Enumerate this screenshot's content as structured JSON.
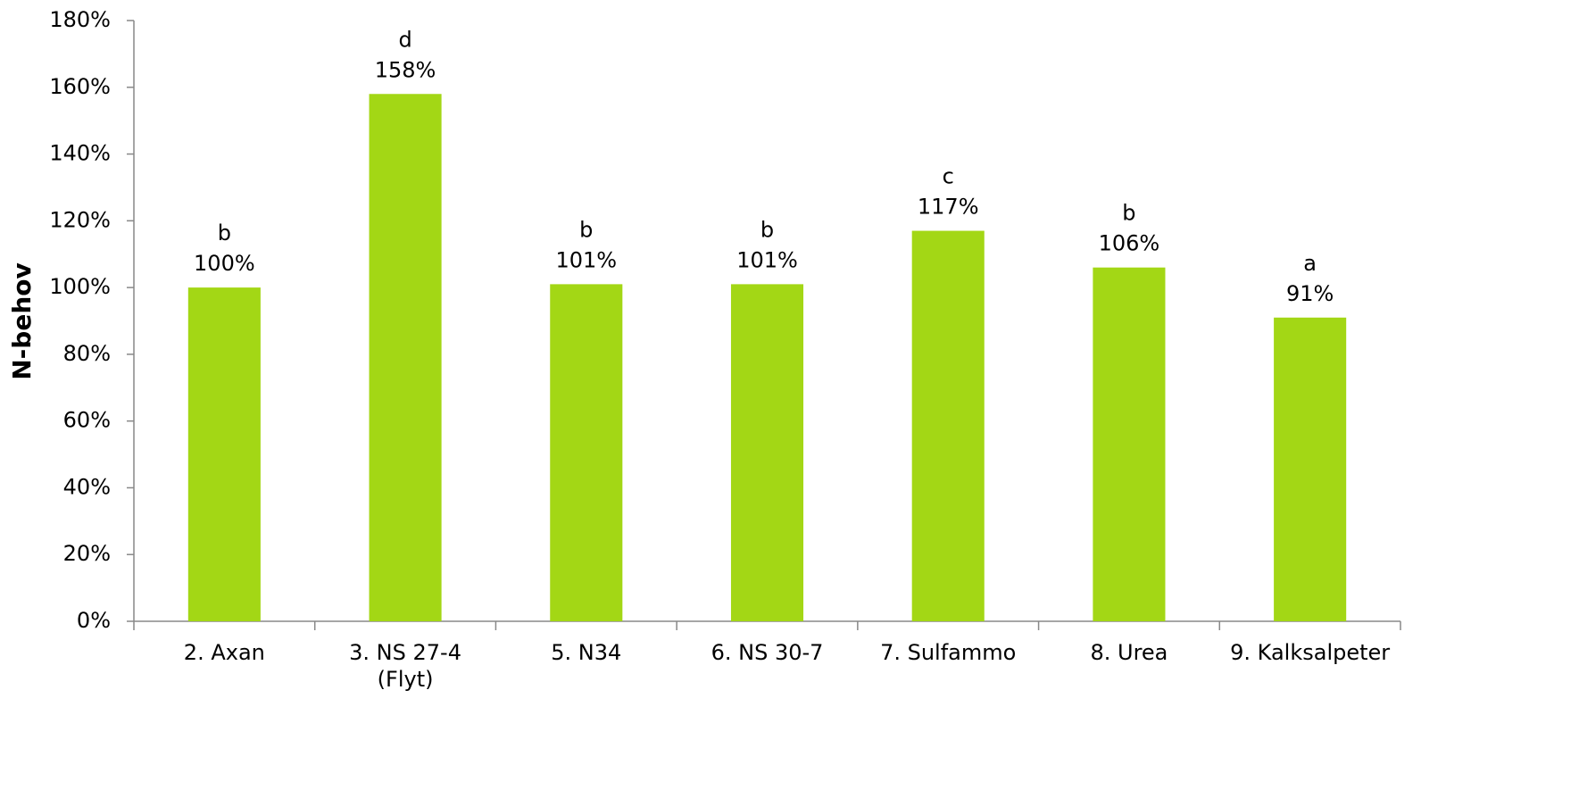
{
  "chart_data": {
    "type": "bar",
    "y_label": "N-behov",
    "categories": [
      "2. Axan",
      "3. NS 27-4\n(Flyt)",
      "5. N34",
      "6. NS 30-7",
      "7. Sulfammo",
      "8. Urea",
      "9. Kalksalpeter"
    ],
    "values": [
      100,
      158,
      101,
      101,
      117,
      106,
      91
    ],
    "value_labels": [
      "100%",
      "158%",
      "101%",
      "101%",
      "117%",
      "106%",
      "91%"
    ],
    "group_labels": [
      "b",
      "d",
      "b",
      "b",
      "c",
      "b",
      "a"
    ],
    "color": "#a3d715",
    "ylim": [
      0,
      180
    ],
    "yticks": [
      {
        "value": 0,
        "label": "0%"
      },
      {
        "value": 20,
        "label": "20%"
      },
      {
        "value": 40,
        "label": "40%"
      },
      {
        "value": 60,
        "label": "60%"
      },
      {
        "value": 80,
        "label": "80%"
      },
      {
        "value": 100,
        "label": "100%"
      },
      {
        "value": 120,
        "label": "120%"
      },
      {
        "value": 140,
        "label": "140%"
      },
      {
        "value": 160,
        "label": "160%"
      },
      {
        "value": 180,
        "label": "180%"
      }
    ],
    "grid": false
  }
}
